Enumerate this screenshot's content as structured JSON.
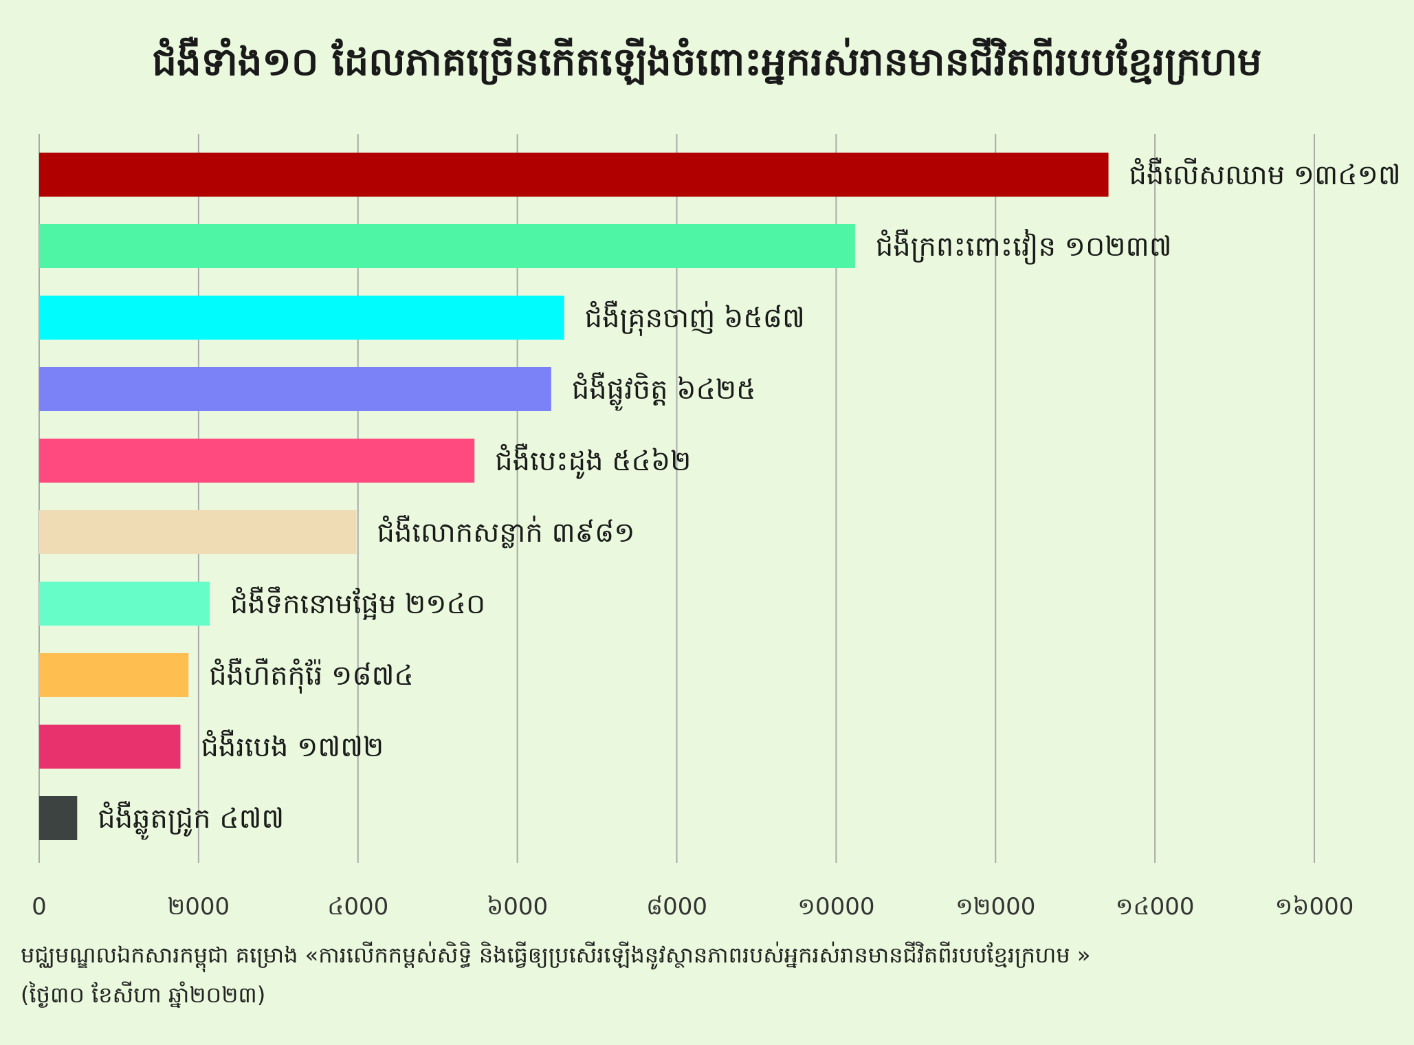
{
  "chart_data": {
    "type": "bar",
    "orientation": "horizontal",
    "title": "ជំងឺទាំង១០ ដែលភាគច្រើនកើតឡើងចំពោះអ្នករស់រានមានជីវិតពីរបបខ្មែរក្រហម",
    "categories": [
      "ជំងឺលើសឈាម",
      "ជំងឺក្រពះពោះវៀន",
      "ជំងឺគ្រុនចាញ់",
      "ជំងឺផ្លូវចិត្ត",
      "ជំងឺបេះដូង",
      "ជំងឺលោកសន្លាក់",
      "ជំងឺទឹកនោមផ្អែម",
      "ជំងឺហឺតកុំរ៉ែ",
      "ជំងឺរបេង",
      "ជំងឺឆ្លូតជ្រូក"
    ],
    "values": [
      13417,
      10237,
      6587,
      6425,
      5462,
      3981,
      2140,
      1874,
      1772,
      477
    ],
    "value_labels": [
      "១៣៤១៧",
      "១០២៣៧",
      "៦៥៨៧",
      "៦៤២៥",
      "៥៤៦២",
      "៣៩៨១",
      "២១៤០",
      "១៨៧៤",
      "១៧៧២",
      "៤៧៧"
    ],
    "colors": [
      "#b00000",
      "#4ef5a5",
      "#00fcfc",
      "#7b82f8",
      "#ff4a80",
      "#f0dcb4",
      "#66fdc8",
      "#ffbf50",
      "#e8326e",
      "#3d4341"
    ],
    "xlim": [
      0,
      16000
    ],
    "x_ticks": [
      0,
      2000,
      4000,
      6000,
      8000,
      10000,
      12000,
      14000,
      16000
    ],
    "x_tick_labels": [
      "0",
      "២000",
      "៤000",
      "៦000",
      "៨000",
      "១0000",
      "១២000",
      "១៤000",
      "១៦000"
    ],
    "grid": true,
    "grid_color": "#aaaaaa"
  },
  "footer": {
    "source_line1": "មជ្ឈមណ្ឌលឯកសារកម្ពុជា គម្រោង «ការលើកកម្ពស់សិទ្ធិ និងធ្វើឲ្យប្រសើរឡើងនូវស្ថានភាពរបស់អ្នករស់រានមានជីវិតពីរបបខ្មែរក្រហម »",
    "source_line2": "(ថ្ងៃ៣០ ខែសីហា ឆ្នាំ២០២៣)"
  }
}
